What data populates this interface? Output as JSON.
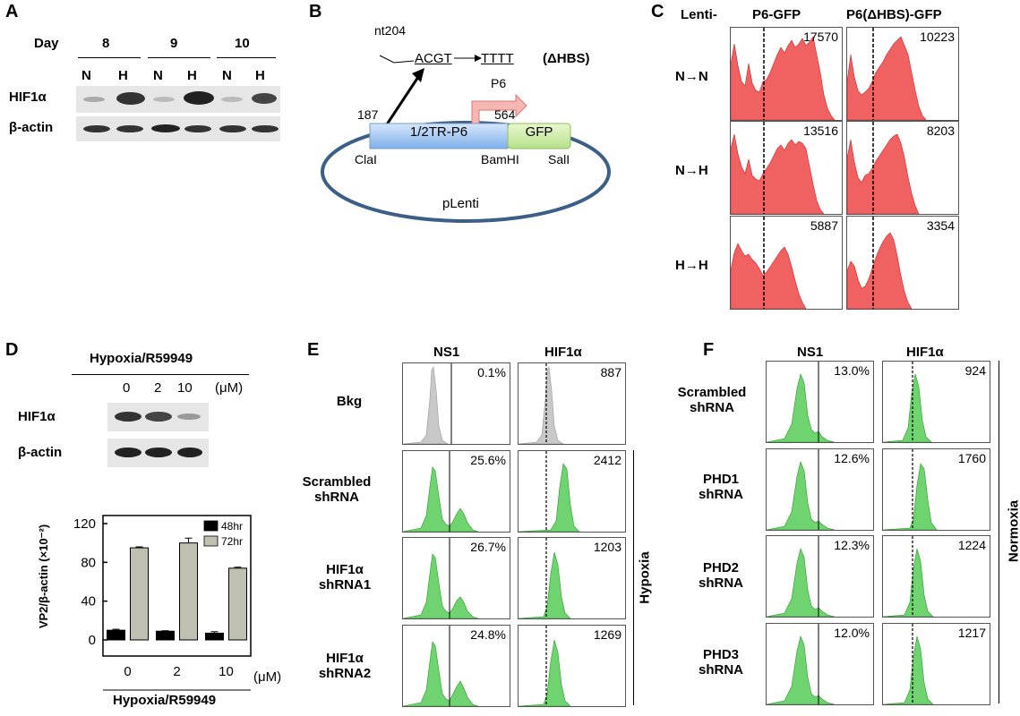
{
  "panels": {
    "A": {
      "label": "A",
      "day_label": "Day",
      "days": [
        "8",
        "9",
        "10"
      ],
      "conditions": [
        "N",
        "H",
        "N",
        "H",
        "N",
        "H"
      ],
      "rows": [
        "HIF1α",
        "β-actin"
      ]
    },
    "B": {
      "label": "B",
      "nt": "nt204",
      "wt_seq": "ACGT",
      "mut_seq": "TTTT",
      "mut_name": "(ΔHBS)",
      "promoter": "P6",
      "pos_start": "187",
      "pos_end": "564",
      "insert": "1/2TR-P6",
      "reporter": "GFP",
      "site1": "ClaI",
      "site2": "BamHI",
      "site3": "SalI",
      "vector": "pLenti"
    },
    "C": {
      "label": "C",
      "lenti": "Lenti-",
      "cols": [
        "P6-GFP",
        "P6(ΔHBS)-GFP"
      ],
      "rows": [
        "N→N",
        "N→H",
        "H→H"
      ],
      "values": [
        [
          "17570",
          "10223"
        ],
        [
          "13516",
          "8203"
        ],
        [
          "5887",
          "3354"
        ]
      ]
    },
    "D": {
      "label": "D",
      "treatment": "Hypoxia/R59949",
      "doses": [
        "0",
        "2",
        "10"
      ],
      "unit": "(μM)",
      "rows": [
        "HIF1α",
        "β-actin"
      ]
    },
    "E": {
      "label": "E",
      "cols": [
        "NS1",
        "HIF1α"
      ],
      "rows": [
        "Bkg",
        "Scrambled shRNA",
        "HIF1α shRNA1",
        "HIF1α shRNA2"
      ],
      "ns1_values": [
        "0.1%",
        "25.6%",
        "26.7%",
        "24.8%"
      ],
      "hif_values": [
        "887",
        "2412",
        "1203",
        "1269"
      ],
      "side_label": "Hypoxia"
    },
    "F": {
      "label": "F",
      "cols": [
        "NS1",
        "HIF1α"
      ],
      "rows": [
        "Scrambled shRNA",
        "PHD1 shRNA",
        "PHD2 shRNA",
        "PHD3 shRNA"
      ],
      "ns1_values": [
        "13.0%",
        "12.6%",
        "12.3%",
        "12.0%"
      ],
      "hif_values": [
        "924",
        "1760",
        "1224",
        "1217"
      ],
      "side_label": "Normoxia"
    }
  },
  "chart_data": {
    "type": "bar",
    "categories": [
      "0",
      "2",
      "10"
    ],
    "series": [
      {
        "name": "48hr",
        "values": [
          10,
          9,
          7
        ],
        "errors": [
          1,
          0.5,
          1.5
        ],
        "color": "#000000"
      },
      {
        "name": "72hr",
        "values": [
          95,
          100,
          74
        ],
        "errors": [
          1,
          5,
          1
        ],
        "color": "#c0c0b0"
      }
    ],
    "yticks": [
      "0",
      "40",
      "80",
      "120"
    ],
    "ylim": [
      0,
      120
    ],
    "ylabel": "VP2/β-actin (×10⁻²)",
    "xunit": "(μM)",
    "xlabel": "Hypoxia/R59949",
    "legend": "top-right"
  }
}
